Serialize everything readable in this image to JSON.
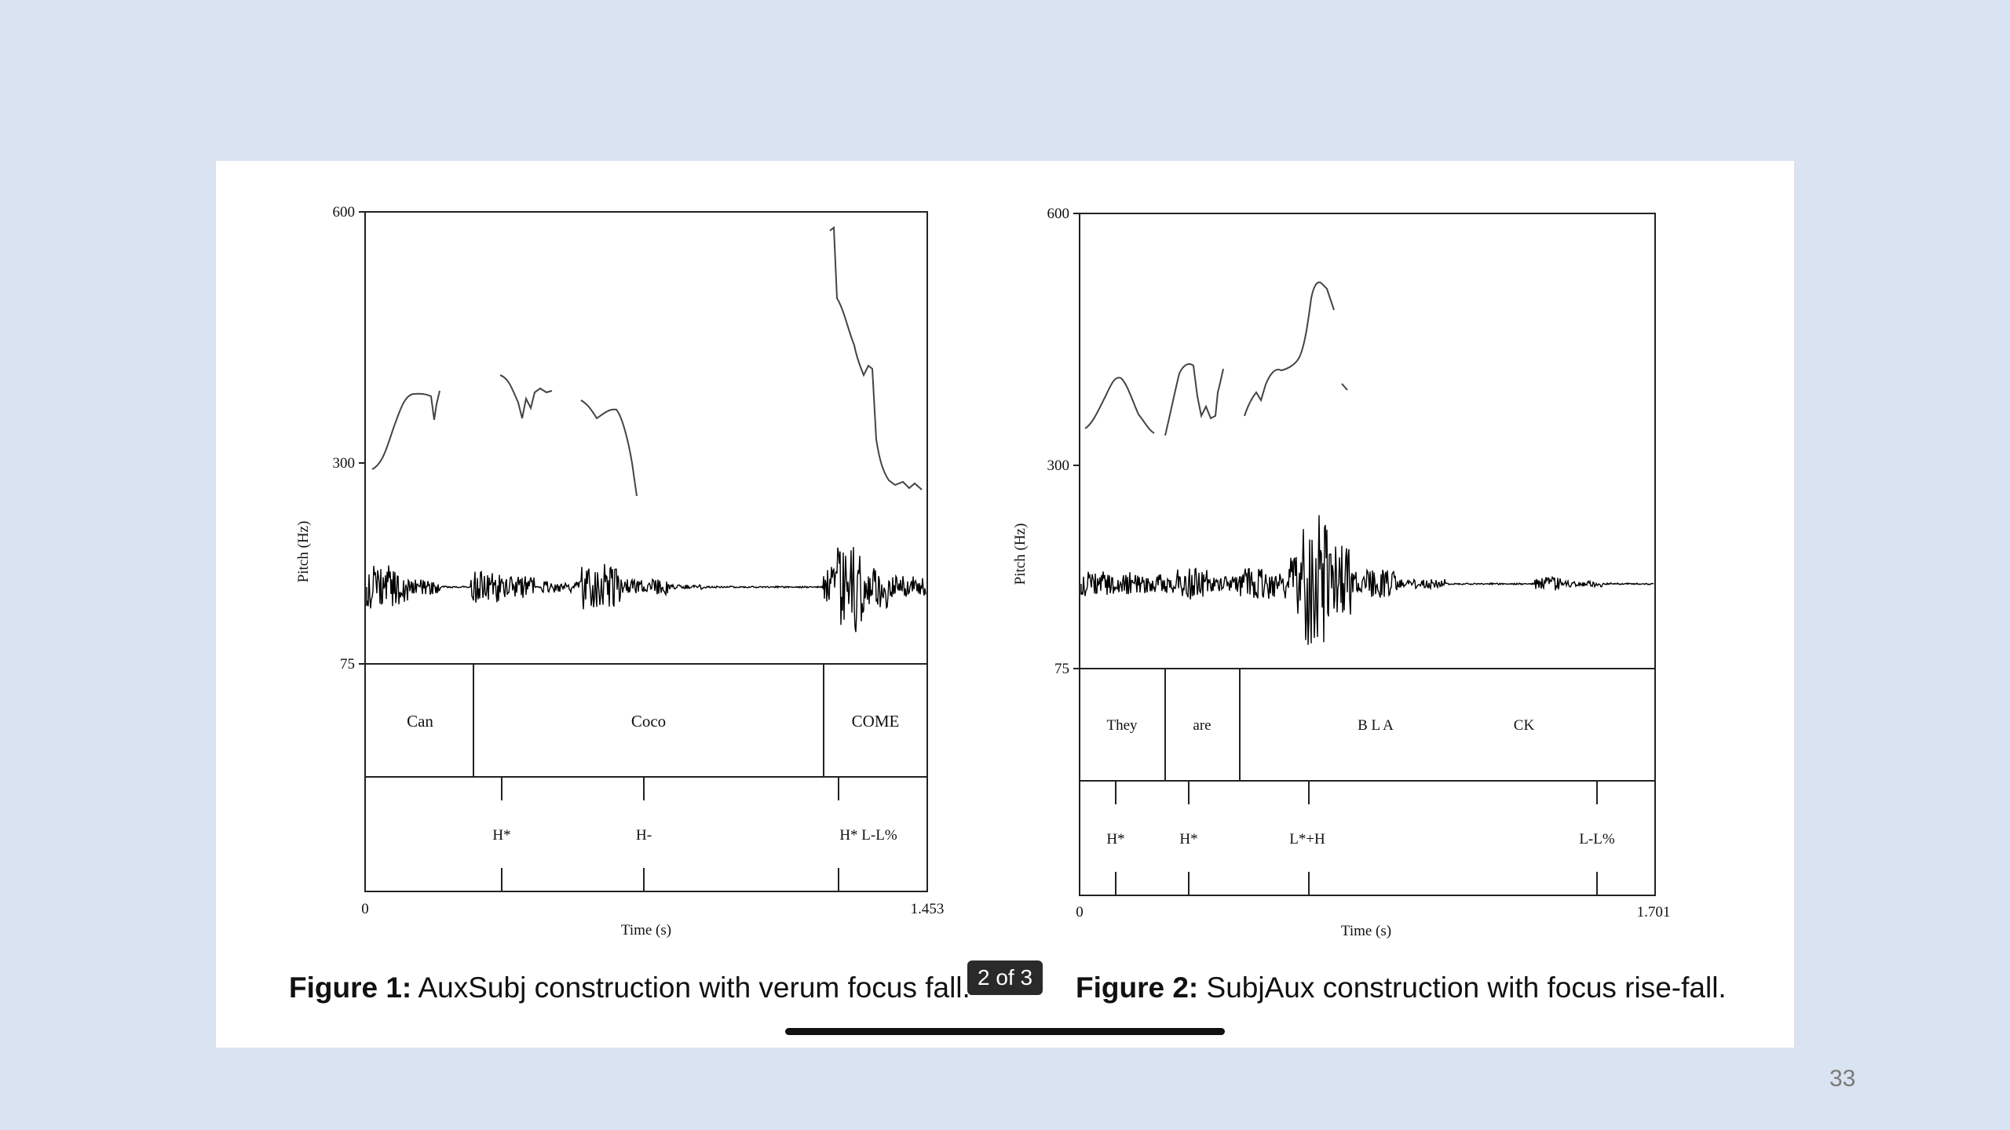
{
  "slide": {
    "page_indicator": "2 of 3",
    "slide_number": "33"
  },
  "figures": [
    {
      "caption_label": "Figure 1:",
      "caption_text": " AuxSubj construction with verum focus fall.",
      "y_axis_label": "Pitch (Hz)",
      "x_axis_label": "Time (s)",
      "y_ticks": [
        "600",
        "300",
        "75"
      ],
      "x_start": "0",
      "x_end": "1.453",
      "words": [
        "Can",
        "Coco",
        "COME"
      ],
      "tones": [
        "H*",
        "H-",
        "H* L-L%"
      ]
    },
    {
      "caption_label": "Figure 2:",
      "caption_text": " SubjAux construction with focus rise-fall.",
      "y_axis_label": "Pitch (Hz)",
      "x_axis_label": "Time (s)",
      "y_ticks": [
        "600",
        "300",
        "75"
      ],
      "x_start": "0",
      "x_end": "1.701",
      "words": [
        "They",
        "are",
        "B L A",
        "CK"
      ],
      "tones": [
        "H*",
        "H*",
        "L*+H",
        "L-L%"
      ]
    }
  ]
}
